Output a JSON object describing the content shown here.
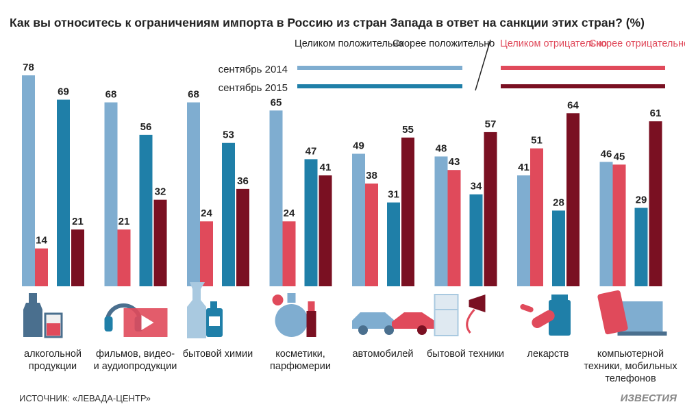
{
  "chart_data": {
    "type": "bar",
    "title": "Как вы относитесь к ограничениям импорта в Россию из стран Запада в ответ на санкции этих стран? (%)",
    "ylim": [
      0,
      80
    ],
    "legend": {
      "placement": "top",
      "positive_entries": [
        "Целиком положительно",
        "Скорее положительно"
      ],
      "negative_entries": [
        "Целиком отрицательно",
        "Скорее отрицательно"
      ],
      "row_labels": [
        "сентябрь 2014",
        "сентябрь 2015"
      ]
    },
    "categories": [
      [
        "алкогольной",
        "продукции"
      ],
      [
        "фильмов, видео-",
        "и аудиопродукции"
      ],
      [
        "бытовой химии"
      ],
      [
        "косметики,",
        "парфюмерии"
      ],
      [
        "автомобилей"
      ],
      [
        "бытовой техники"
      ],
      [
        "лекарств"
      ],
      [
        "компьютерной",
        "техники, мобильных",
        "телефонов"
      ]
    ],
    "series": [
      {
        "name": "положительно, сентябрь 2014",
        "color": "#7fadd0",
        "values": [
          78,
          68,
          68,
          65,
          49,
          48,
          41,
          46
        ]
      },
      {
        "name": "отрицательно, сентябрь 2014",
        "color": "#e04a5b",
        "values": [
          14,
          21,
          24,
          24,
          38,
          43,
          51,
          45
        ]
      },
      {
        "name": "положительно, сентябрь 2015",
        "color": "#1f7fa8",
        "values": [
          69,
          56,
          53,
          47,
          31,
          34,
          28,
          29
        ]
      },
      {
        "name": "отрицательно, сентябрь 2015",
        "color": "#7a1022",
        "values": [
          21,
          32,
          36,
          41,
          55,
          57,
          64,
          61
        ]
      }
    ]
  },
  "icons": [
    "bottle-glass-icon",
    "headphones-video-icon",
    "spray-bottle-icon",
    "perfume-lipstick-icon",
    "car-icon",
    "fridge-hairdryer-icon",
    "pills-icon",
    "phone-laptop-icon"
  ],
  "footer": {
    "source": "ИСТОЧНИК: «ЛЕВАДА-ЦЕНТР»",
    "brand": "ИЗВЕСТИЯ"
  }
}
